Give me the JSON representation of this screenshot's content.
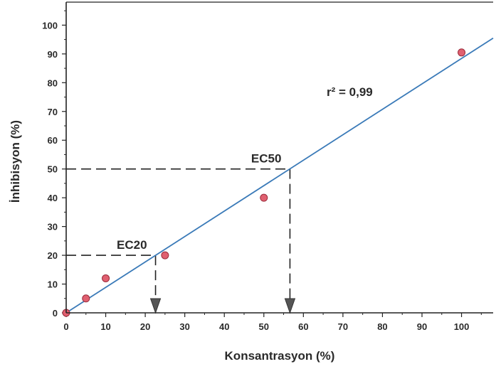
{
  "chart_data": {
    "type": "scatter",
    "xlabel": "Konsantrasyon (%)",
    "ylabel": "İnhibisyon (%)",
    "xlim": [
      0,
      108
    ],
    "ylim": [
      0,
      108
    ],
    "xticks": [
      0,
      10,
      20,
      30,
      40,
      50,
      60,
      70,
      80,
      90,
      100
    ],
    "yticks": [
      0,
      10,
      20,
      30,
      40,
      50,
      60,
      70,
      80,
      90,
      100
    ],
    "points": [
      {
        "x": 0,
        "y": 0
      },
      {
        "x": 5,
        "y": 5
      },
      {
        "x": 10,
        "y": 12
      },
      {
        "x": 25,
        "y": 20
      },
      {
        "x": 50,
        "y": 40
      },
      {
        "x": 100,
        "y": 90.5
      }
    ],
    "fit_line": {
      "x": [
        0,
        108
      ],
      "y": [
        0,
        95.5
      ]
    },
    "r2_label": "r² = 0,99",
    "annotations": [
      {
        "label": "EC20",
        "x": 22.6,
        "y": 20
      },
      {
        "label": "EC50",
        "x": 56.6,
        "y": 50
      }
    ],
    "grid": false,
    "colors": {
      "point": "#e06070",
      "point_stroke": "#9a2a3a",
      "line": "#3a7ab8",
      "axis": "#222222",
      "dash": "#222222",
      "arrow": "#555555"
    }
  }
}
